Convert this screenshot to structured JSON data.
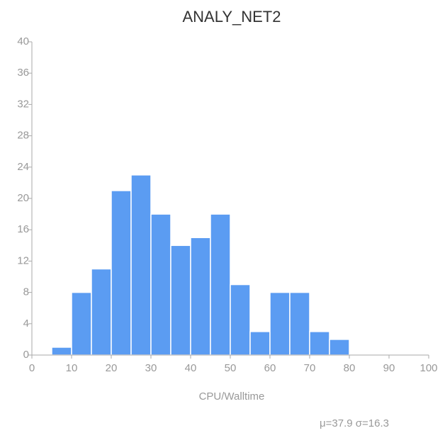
{
  "chart_data": {
    "type": "histogram",
    "title": "ANALY_NET2",
    "x_label": "CPU/Walltime",
    "annotation": "μ=37.9 σ=16.3",
    "bins": [
      5,
      10,
      15,
      20,
      25,
      30,
      35,
      40,
      45,
      50,
      55,
      60,
      65,
      70,
      75,
      80
    ],
    "values": [
      1,
      8,
      11,
      21,
      23,
      18,
      14,
      15,
      18,
      9,
      3,
      8,
      8,
      3,
      2
    ],
    "color": "#5b9cf2",
    "xlim": [
      0,
      100
    ],
    "xticks": [
      0,
      10,
      20,
      30,
      40,
      50,
      60,
      70,
      80,
      90,
      100
    ],
    "ylim": [
      0,
      40
    ],
    "yticks": [
      0,
      4,
      8,
      12,
      16,
      20,
      24,
      28,
      32,
      36,
      40
    ]
  }
}
